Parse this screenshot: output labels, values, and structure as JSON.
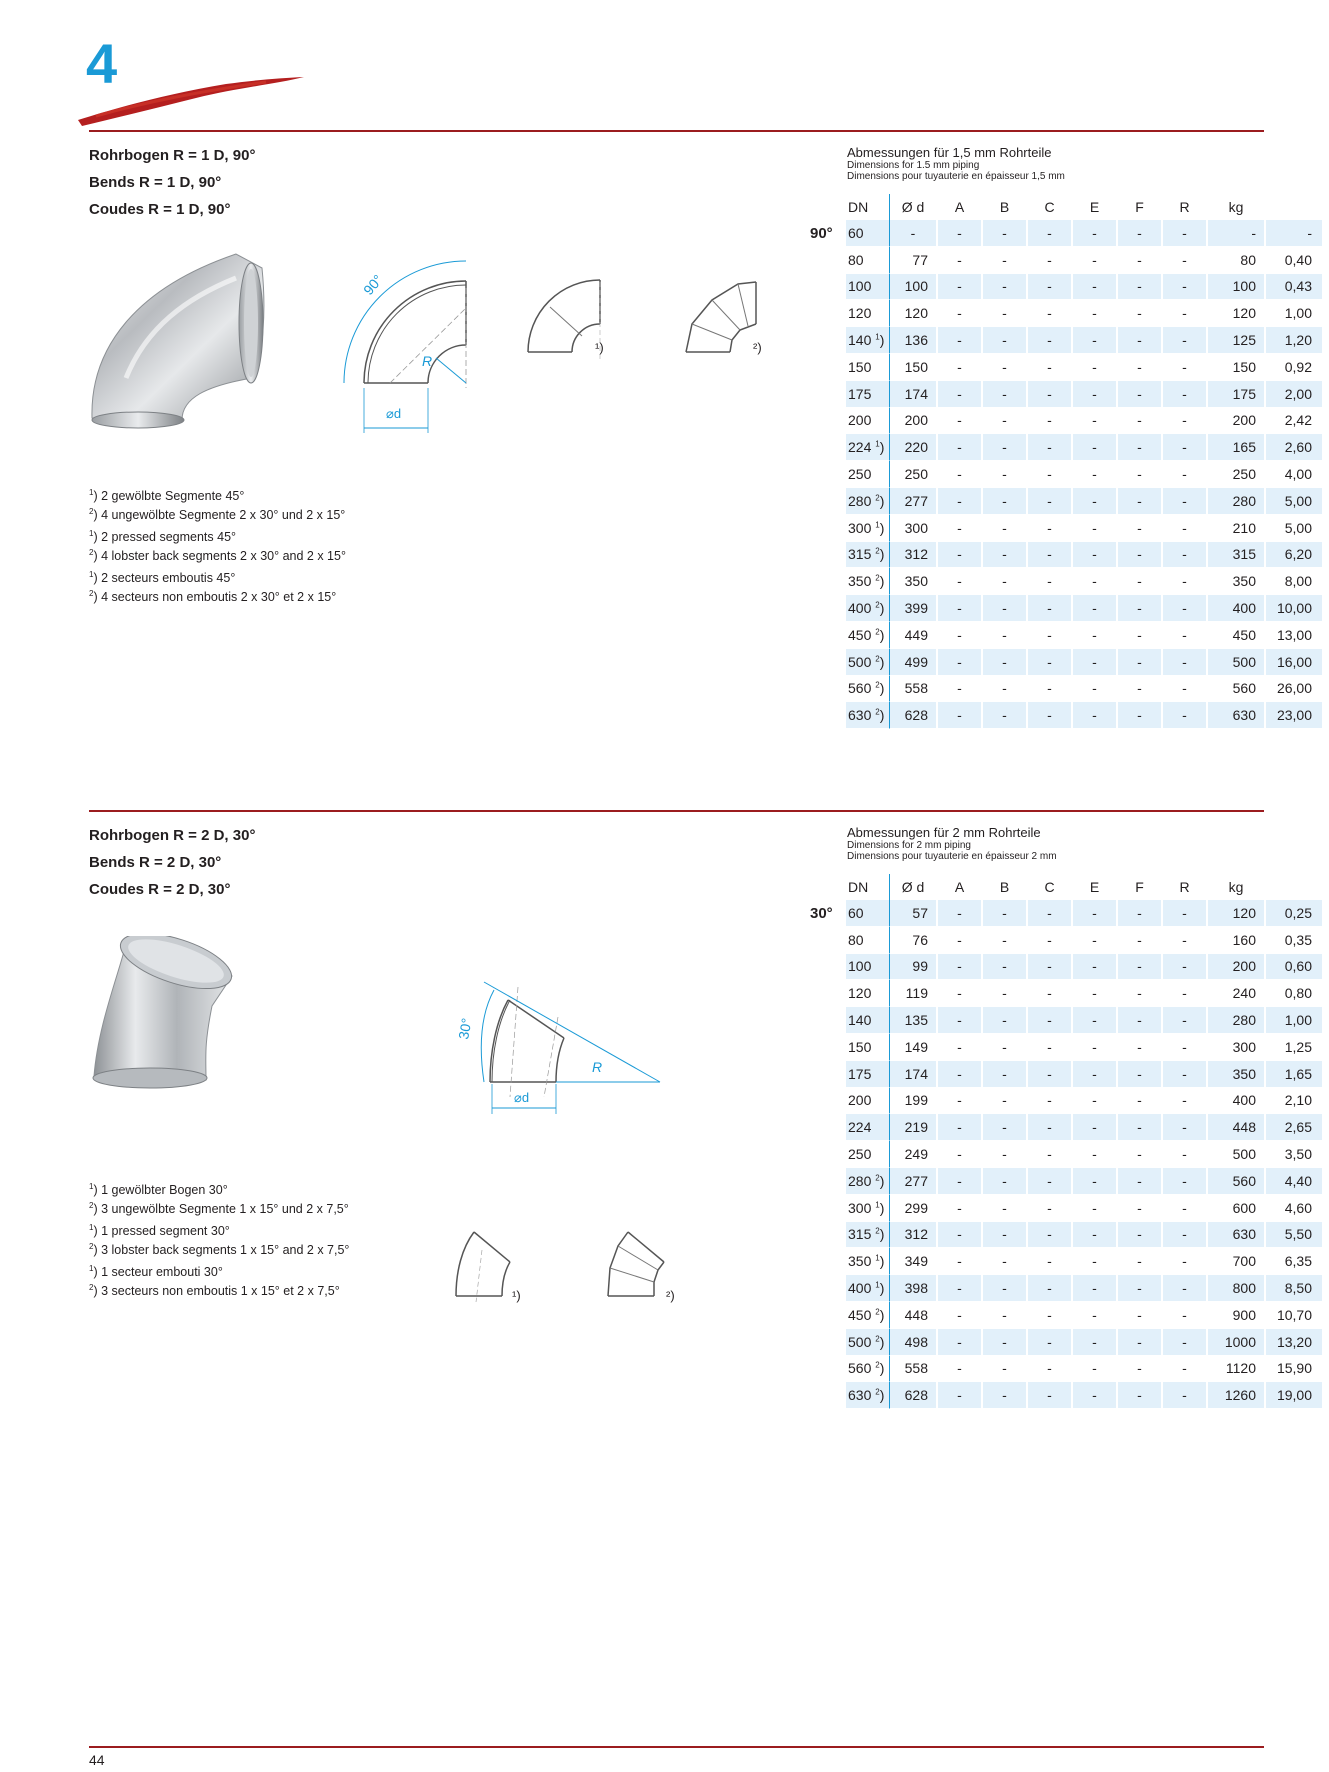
{
  "chapter": "4",
  "page_number": "44",
  "sections": [
    {
      "titles": [
        "Rohrbogen R = 1 D, 90°",
        "Bends R = 1 D, 90°",
        "Coudes R = 1 D, 90°"
      ],
      "dimensions_header": [
        "Abmessungen für 1,5 mm Rohrteile",
        "Dimensions for 1.5 mm piping",
        "Dimensions pour tuyauterie en épaisseur 1,5 mm"
      ],
      "angle": "90°",
      "columns": [
        "DN",
        "Ø d",
        "A",
        "B",
        "C",
        "E",
        "F",
        "R",
        "kg"
      ],
      "rows": [
        {
          "dn": "60",
          "sup": "",
          "d": "-",
          "r": "-",
          "kg": "-"
        },
        {
          "dn": "80",
          "sup": "",
          "d": "77",
          "r": "80",
          "kg": "0,40"
        },
        {
          "dn": "100",
          "sup": "",
          "d": "100",
          "r": "100",
          "kg": "0,43"
        },
        {
          "dn": "120",
          "sup": "",
          "d": "120",
          "r": "120",
          "kg": "1,00"
        },
        {
          "dn": "140",
          "sup": "1",
          "d": "136",
          "r": "125",
          "kg": "1,20"
        },
        {
          "dn": "150",
          "sup": "",
          "d": "150",
          "r": "150",
          "kg": "0,92"
        },
        {
          "dn": "175",
          "sup": "",
          "d": "174",
          "r": "175",
          "kg": "2,00"
        },
        {
          "dn": "200",
          "sup": "",
          "d": "200",
          "r": "200",
          "kg": "2,42"
        },
        {
          "dn": "224",
          "sup": "1",
          "d": "220",
          "r": "165",
          "kg": "2,60"
        },
        {
          "dn": "250",
          "sup": "",
          "d": "250",
          "r": "250",
          "kg": "4,00"
        },
        {
          "dn": "280",
          "sup": "2",
          "d": "277",
          "r": "280",
          "kg": "5,00"
        },
        {
          "dn": "300",
          "sup": "1",
          "d": "300",
          "r": "210",
          "kg": "5,00"
        },
        {
          "dn": "315",
          "sup": "2",
          "d": "312",
          "r": "315",
          "kg": "6,20"
        },
        {
          "dn": "350",
          "sup": "2",
          "d": "350",
          "r": "350",
          "kg": "8,00"
        },
        {
          "dn": "400",
          "sup": "2",
          "d": "399",
          "r": "400",
          "kg": "10,00"
        },
        {
          "dn": "450",
          "sup": "2",
          "d": "449",
          "r": "450",
          "kg": "13,00"
        },
        {
          "dn": "500",
          "sup": "2",
          "d": "499",
          "r": "500",
          "kg": "16,00"
        },
        {
          "dn": "560",
          "sup": "2",
          "d": "558",
          "r": "560",
          "kg": "26,00"
        },
        {
          "dn": "630",
          "sup": "2",
          "d": "628",
          "r": "630",
          "kg": "23,00"
        }
      ],
      "notes": [
        [
          {
            "sup": "1",
            "text": ") 2 gewölbte Segmente 45°"
          },
          {
            "sup": "2",
            "text": ") 4 ungewölbte Segmente 2 x 30° und 2 x 15°"
          }
        ],
        [
          {
            "sup": "1",
            "text": ") 2 pressed segments 45°"
          },
          {
            "sup": "2",
            "text": ") 4 lobster back segments 2 x 30° and 2 x 15°"
          }
        ],
        [
          {
            "sup": "1",
            "text": ") 2 secteurs emboutis 45°"
          },
          {
            "sup": "2",
            "text": ") 4 secteurs non emboutis 2 x 30° et 2 x 15°"
          }
        ]
      ],
      "drawing_labels": {
        "angle": "90°",
        "radius": "R",
        "diameter": "⌀d",
        "variant1": "¹)",
        "variant2": "²)"
      }
    },
    {
      "titles": [
        "Rohrbogen R = 2 D, 30°",
        "Bends R = 2 D, 30°",
        "Coudes R = 2 D, 30°"
      ],
      "dimensions_header": [
        "Abmessungen für 2 mm Rohrteile",
        "Dimensions for 2 mm piping",
        "Dimensions pour tuyauterie en épaisseur 2 mm"
      ],
      "angle": "30°",
      "columns": [
        "DN",
        "Ø d",
        "A",
        "B",
        "C",
        "E",
        "F",
        "R",
        "kg"
      ],
      "rows": [
        {
          "dn": "60",
          "sup": "",
          "d": "57",
          "r": "120",
          "kg": "0,25"
        },
        {
          "dn": "80",
          "sup": "",
          "d": "76",
          "r": "160",
          "kg": "0,35"
        },
        {
          "dn": "100",
          "sup": "",
          "d": "99",
          "r": "200",
          "kg": "0,60"
        },
        {
          "dn": "120",
          "sup": "",
          "d": "119",
          "r": "240",
          "kg": "0,80"
        },
        {
          "dn": "140",
          "sup": "",
          "d": "135",
          "r": "280",
          "kg": "1,00"
        },
        {
          "dn": "150",
          "sup": "",
          "d": "149",
          "r": "300",
          "kg": "1,25"
        },
        {
          "dn": "175",
          "sup": "",
          "d": "174",
          "r": "350",
          "kg": "1,65"
        },
        {
          "dn": "200",
          "sup": "",
          "d": "199",
          "r": "400",
          "kg": "2,10"
        },
        {
          "dn": "224",
          "sup": "",
          "d": "219",
          "r": "448",
          "kg": "2,65"
        },
        {
          "dn": "250",
          "sup": "",
          "d": "249",
          "r": "500",
          "kg": "3,50"
        },
        {
          "dn": "280",
          "sup": "2",
          "d": "277",
          "r": "560",
          "kg": "4,40"
        },
        {
          "dn": "300",
          "sup": "1",
          "d": "299",
          "r": "600",
          "kg": "4,60"
        },
        {
          "dn": "315",
          "sup": "2",
          "d": "312",
          "r": "630",
          "kg": "5,50"
        },
        {
          "dn": "350",
          "sup": "1",
          "d": "349",
          "r": "700",
          "kg": "6,35"
        },
        {
          "dn": "400",
          "sup": "1",
          "d": "398",
          "r": "800",
          "kg": "8,50"
        },
        {
          "dn": "450",
          "sup": "2",
          "d": "448",
          "r": "900",
          "kg": "10,70"
        },
        {
          "dn": "500",
          "sup": "2",
          "d": "498",
          "r": "1000",
          "kg": "13,20"
        },
        {
          "dn": "560",
          "sup": "2",
          "d": "558",
          "r": "1120",
          "kg": "15,90"
        },
        {
          "dn": "630",
          "sup": "2",
          "d": "628",
          "r": "1260",
          "kg": "19,00"
        }
      ],
      "notes": [
        [
          {
            "sup": "1",
            "text": ") 1 gewölbter Bogen 30°"
          },
          {
            "sup": "2",
            "text": ") 3 ungewölbte Segmente 1 x 15° und 2 x 7,5°"
          }
        ],
        [
          {
            "sup": "1",
            "text": ") 1 pressed segment 30°"
          },
          {
            "sup": "2",
            "text": ") 3 lobster back segments 1 x 15° and 2 x 7,5°"
          }
        ],
        [
          {
            "sup": "1",
            "text": ") 1 secteur embouti 30°"
          },
          {
            "sup": "2",
            "text": ") 3 secteurs non emboutis 1 x 15° et 2 x 7,5°"
          }
        ]
      ],
      "drawing_labels": {
        "angle": "30°",
        "radius": "R",
        "diameter": "⌀d",
        "variant1": "¹)",
        "variant2": "²)"
      }
    }
  ],
  "colors": {
    "accent_blue": "#1a9ad6",
    "rule_red": "#9b1c1f",
    "row_tint": "#e2f0fa"
  }
}
